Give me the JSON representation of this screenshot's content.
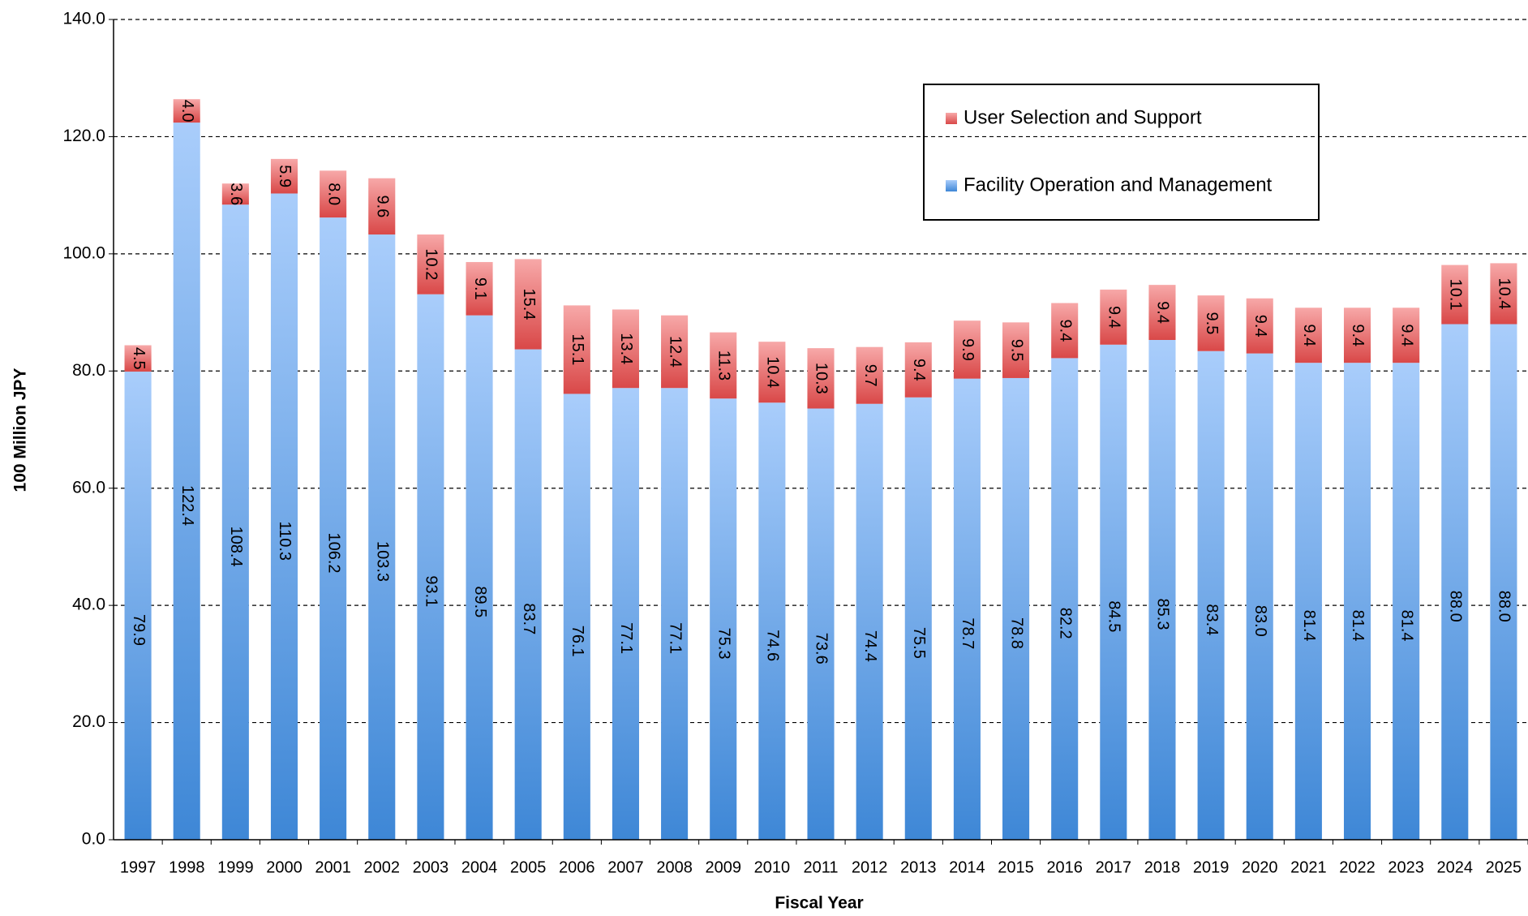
{
  "chart_data": {
    "type": "stacked_bar",
    "xlabel": "Fiscal Year",
    "ylabel": "100 Million JPY",
    "categories": [
      "1997",
      "1998",
      "1999",
      "2000",
      "2001",
      "2002",
      "2003",
      "2004",
      "2005",
      "2006",
      "2007",
      "2008",
      "2009",
      "2010",
      "2011",
      "2012",
      "2013",
      "2014",
      "2015",
      "2016",
      "2017",
      "2018",
      "2019",
      "2020",
      "2021",
      "2022",
      "2023",
      "2024",
      "2025"
    ],
    "series": [
      {
        "name": "Facility Operation and Management",
        "color": "#6fa8ea",
        "values": [
          79.9,
          122.4,
          108.4,
          110.3,
          106.2,
          103.3,
          93.1,
          89.5,
          83.7,
          76.1,
          77.1,
          77.1,
          75.3,
          74.6,
          73.6,
          74.4,
          75.5,
          78.7,
          78.8,
          82.2,
          84.5,
          85.3,
          83.4,
          83.0,
          81.4,
          81.4,
          81.4,
          88.0,
          88.0
        ],
        "value_labels": [
          "79.9",
          "122.4",
          "108.4",
          "110.3",
          "106.2",
          "103.3",
          "93.1",
          "89.5",
          "83.7",
          "76.1",
          "77.1",
          "77.1",
          "75.3",
          "74.6",
          "73.6",
          "74.4",
          "75.5",
          "78.7",
          "78.8",
          "82.2",
          "84.5",
          "85.3",
          "83.4",
          "83.0",
          "81.4",
          "81.4",
          "81.4",
          "88.0",
          "88.0"
        ]
      },
      {
        "name": "User Selection and Support",
        "color": "#f08080",
        "values": [
          4.5,
          4.0,
          3.6,
          5.9,
          8.0,
          9.6,
          10.2,
          9.1,
          15.4,
          15.1,
          13.4,
          12.4,
          11.3,
          10.4,
          10.3,
          9.7,
          9.4,
          9.9,
          9.5,
          9.4,
          9.4,
          9.4,
          9.5,
          9.4,
          9.4,
          9.4,
          9.4,
          10.1,
          10.4
        ],
        "value_labels": [
          "4.5",
          "4.0",
          "3.6",
          "5.9",
          "8.0",
          "9.6",
          "10.2",
          "9.1",
          "15.4",
          "15.1",
          "13.4",
          "12.4",
          "11.3",
          "10.4",
          "10.3",
          "9.7",
          "9.4",
          "9.9",
          "9.5",
          "9.4",
          "9.4",
          "9.4",
          "9.5",
          "9.4",
          "9.4",
          "9.4",
          "9.4",
          "10.1",
          "10.4"
        ]
      }
    ],
    "ylim": [
      0,
      140
    ],
    "yticks": [
      {
        "value": 0,
        "label": "0.0"
      },
      {
        "value": 20,
        "label": "20.0"
      },
      {
        "value": 40,
        "label": "40.0"
      },
      {
        "value": 60,
        "label": "60.0"
      },
      {
        "value": 80,
        "label": "80.0"
      },
      {
        "value": 100,
        "label": "100.0"
      },
      {
        "value": 120,
        "label": "120.0"
      },
      {
        "value": 140,
        "label": "140.0"
      }
    ],
    "grid": true
  }
}
